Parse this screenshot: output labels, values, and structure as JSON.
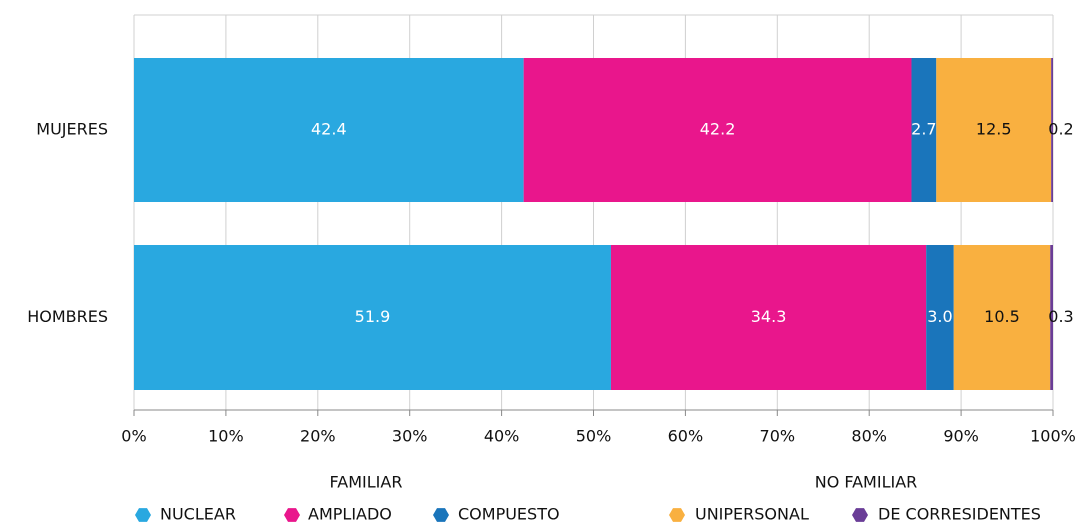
{
  "chart_data": {
    "type": "stacked-bar-horizontal",
    "categories": [
      "MUJERES",
      "HOMBRES"
    ],
    "series": [
      {
        "name": "NUCLEAR",
        "color": "#29a8e0",
        "values": [
          42.4,
          51.9
        ]
      },
      {
        "name": "AMPLIADO",
        "color": "#e9168c",
        "values": [
          42.2,
          34.3
        ]
      },
      {
        "name": "COMPUESTO",
        "color": "#1a75bb",
        "values": [
          2.7,
          3.0
        ],
        "value_labels": [
          "2.7",
          "3.0"
        ]
      },
      {
        "name": "UNIPERSONAL",
        "color": "#f9b040",
        "values": [
          12.5,
          10.5
        ]
      },
      {
        "name": "DE CORRESIDENTES",
        "color": "#6a3d97",
        "values": [
          0.2,
          0.3
        ]
      }
    ],
    "legend_groups": [
      {
        "title": "FAMILIAR"
      },
      {
        "title": "NO FAMILIAR"
      }
    ],
    "xlim": [
      0,
      100
    ],
    "xticks": [
      {
        "value": 0,
        "label": "0%"
      },
      {
        "value": 10,
        "label": "10%"
      },
      {
        "value": 20,
        "label": "20%"
      },
      {
        "value": 30,
        "label": "30%"
      },
      {
        "value": 40,
        "label": "40%"
      },
      {
        "value": 50,
        "label": "50%"
      },
      {
        "value": 60,
        "label": "60%"
      },
      {
        "value": 70,
        "label": "70%"
      },
      {
        "value": 80,
        "label": "80%"
      },
      {
        "value": 90,
        "label": "90%"
      },
      {
        "value": 100,
        "label": "100%"
      }
    ],
    "grid": true
  }
}
